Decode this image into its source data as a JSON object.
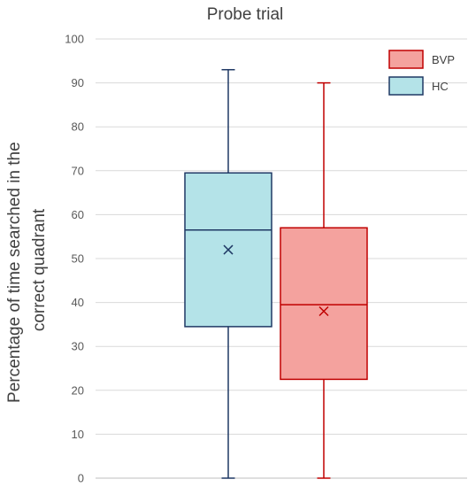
{
  "chart_data": {
    "type": "box",
    "title": "Probe trial",
    "ylabel": "Percentage of time searched in the correct quadrant",
    "ylabel_lines": [
      "Percentage of time searched in the",
      "correct quadrant"
    ],
    "xlabel": "",
    "ylim": [
      0,
      100
    ],
    "yticks": [
      0,
      10,
      20,
      30,
      40,
      50,
      60,
      70,
      80,
      90,
      100
    ],
    "grid": true,
    "legend_position": "top-right",
    "series": [
      {
        "name": "HC",
        "fill": "#b4e3e8",
        "stroke": "#1f3864",
        "min": 0,
        "q1": 34.5,
        "median": 56.5,
        "q3": 69.5,
        "max": 93,
        "mean": 52
      },
      {
        "name": "BVP",
        "fill": "#f4a29e",
        "stroke": "#c00000",
        "min": 0,
        "q1": 22.5,
        "median": 39.5,
        "q3": 57,
        "max": 90,
        "mean": 38
      }
    ],
    "legend_order": [
      "BVP",
      "HC"
    ]
  }
}
